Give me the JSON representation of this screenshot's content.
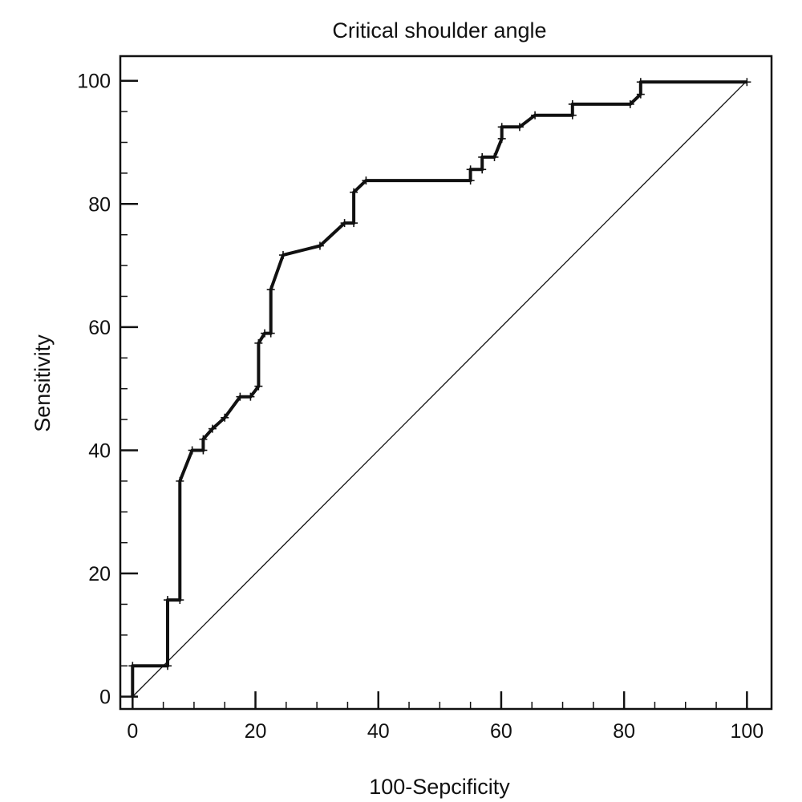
{
  "chart_data": {
    "type": "line",
    "title": "Critical shoulder angle",
    "xlabel": "100-Sepcificity",
    "ylabel": "Sensitivity",
    "xlim": [
      -2,
      104
    ],
    "ylim": [
      -2,
      104
    ],
    "x_ticks": [
      0,
      20,
      40,
      60,
      80,
      100
    ],
    "y_ticks": [
      0,
      20,
      40,
      60,
      80,
      100
    ],
    "grid": false,
    "legend": "none",
    "line_color": "#111111",
    "series": [
      {
        "values": [
          [
            0,
            0
          ],
          [
            0,
            5
          ],
          [
            5.7,
            5
          ],
          [
            5.7,
            15.7
          ],
          [
            7.7,
            15.7
          ],
          [
            7.7,
            35
          ],
          [
            9.7,
            40
          ],
          [
            11.5,
            40
          ],
          [
            11.5,
            41.8
          ],
          [
            13,
            43.5
          ],
          [
            15,
            45.3
          ],
          [
            17.5,
            48.7
          ],
          [
            19.2,
            48.7
          ],
          [
            20.5,
            50.4
          ],
          [
            20.5,
            57.4
          ],
          [
            21.5,
            59
          ],
          [
            22.5,
            59
          ],
          [
            22.5,
            66.1
          ],
          [
            24.5,
            71.7
          ],
          [
            30.5,
            73.2
          ],
          [
            34.5,
            76.9
          ],
          [
            36,
            76.9
          ],
          [
            36,
            81.9
          ],
          [
            38,
            83.8
          ],
          [
            55,
            83.8
          ],
          [
            55,
            85.6
          ],
          [
            56.9,
            85.6
          ],
          [
            56.9,
            87.6
          ],
          [
            58.9,
            87.6
          ],
          [
            60.1,
            90.6
          ],
          [
            60.1,
            92.5
          ],
          [
            63,
            92.5
          ],
          [
            65.5,
            94.4
          ],
          [
            71.6,
            94.4
          ],
          [
            71.6,
            96.2
          ],
          [
            81,
            96.2
          ],
          [
            82.7,
            97.8
          ],
          [
            82.7,
            99.8
          ],
          [
            100,
            99.8
          ]
        ]
      },
      {
        "values": [
          [
            0,
            0
          ],
          [
            100,
            100
          ]
        ]
      }
    ]
  }
}
